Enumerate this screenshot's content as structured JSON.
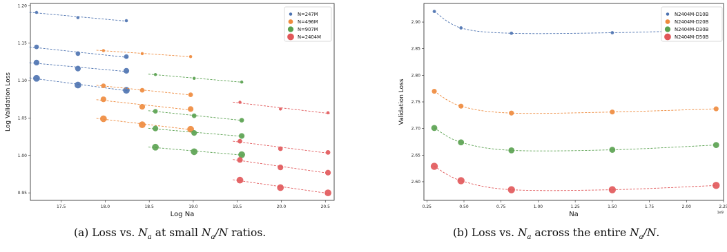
{
  "charts": [
    {
      "type": "scatter",
      "xlabel": "Log Na",
      "ylabel": "Log Validation Loss",
      "xlim": [
        17.15,
        20.6
      ],
      "ylim": [
        0.94,
        1.203
      ],
      "xticks": [
        17.5,
        18.0,
        18.5,
        19.0,
        19.5,
        20.0,
        20.5
      ],
      "xtick_labels": [
        "17.5",
        "18.0",
        "18.5",
        "19.0",
        "19.5",
        "20.0",
        "20.5"
      ],
      "yticks": [
        0.95,
        1.0,
        1.05,
        1.1,
        1.15,
        1.2
      ],
      "ytick_labels": [
        "0.95",
        "1.00",
        "1.05",
        "1.10",
        "1.15",
        "1.20"
      ],
      "legend_position": "top-right",
      "grid": false,
      "legend": [
        "N=247M",
        "N=496M",
        "N=907M",
        "N=2404M"
      ],
      "colors": [
        "#4c72b0",
        "#ee8a3c",
        "#59a14f",
        "#e15759"
      ],
      "point_sizes": [
        3,
        4.5,
        5.5,
        6.5
      ],
      "series": [
        {
          "color_index": 0,
          "sub": [
            {
              "x": [
                17.22,
                17.69,
                18.24
              ],
              "y": [
                1.191,
                1.184,
                1.18
              ]
            },
            {
              "x": [
                17.22,
                17.69,
                18.24
              ],
              "y": [
                1.145,
                1.136,
                1.132
              ]
            },
            {
              "x": [
                17.22,
                17.69,
                18.24
              ],
              "y": [
                1.124,
                1.116,
                1.113
              ]
            },
            {
              "x": [
                17.22,
                17.69,
                18.24
              ],
              "y": [
                1.103,
                1.094,
                1.087
              ]
            }
          ]
        },
        {
          "color_index": 1,
          "sub": [
            {
              "x": [
                17.98,
                18.42,
                18.97
              ],
              "y": [
                1.14,
                1.136,
                1.132
              ]
            },
            {
              "x": [
                17.98,
                18.42,
                18.97
              ],
              "y": [
                1.093,
                1.087,
                1.081
              ]
            },
            {
              "x": [
                17.98,
                18.42,
                18.97
              ],
              "y": [
                1.075,
                1.065,
                1.062
              ]
            },
            {
              "x": [
                17.98,
                18.42,
                18.97
              ],
              "y": [
                1.049,
                1.041,
                1.035
              ]
            }
          ]
        },
        {
          "color_index": 2,
          "sub": [
            {
              "x": [
                18.57,
                19.01,
                19.55
              ],
              "y": [
                1.108,
                1.103,
                1.098
              ]
            },
            {
              "x": [
                18.57,
                19.01,
                19.55
              ],
              "y": [
                1.059,
                1.053,
                1.047
              ]
            },
            {
              "x": [
                18.57,
                19.01,
                19.55
              ],
              "y": [
                1.036,
                1.03,
                1.026
              ]
            },
            {
              "x": [
                18.57,
                19.01,
                19.55
              ],
              "y": [
                1.011,
                1.005,
                1.001
              ]
            }
          ]
        },
        {
          "color_index": 3,
          "sub": [
            {
              "x": [
                19.53,
                19.99,
                20.53
              ],
              "y": [
                1.071,
                1.062,
                1.057
              ]
            },
            {
              "x": [
                19.53,
                19.99,
                20.53
              ],
              "y": [
                1.019,
                1.009,
                1.004
              ]
            },
            {
              "x": [
                19.53,
                19.99,
                20.53
              ],
              "y": [
                0.994,
                0.984,
                0.977
              ]
            },
            {
              "x": [
                19.53,
                19.99,
                20.53
              ],
              "y": [
                0.967,
                0.957,
                0.95
              ]
            }
          ]
        }
      ]
    },
    {
      "type": "scatter",
      "xlabel": "Na",
      "ylabel": "Validation Loss",
      "x_multiplier": "1e9",
      "xlim": [
        0.23,
        2.25
      ],
      "ylim": [
        2.565,
        2.935
      ],
      "xticks": [
        0.25,
        0.5,
        0.75,
        1.0,
        1.25,
        1.5,
        1.75,
        2.0,
        2.25
      ],
      "xtick_labels": [
        "0.25",
        "0.50",
        "0.75",
        "1.00",
        "1.25",
        "1.50",
        "1.75",
        "2.00",
        "2.25"
      ],
      "yticks": [
        2.6,
        2.65,
        2.7,
        2.75,
        2.8,
        2.85,
        2.9
      ],
      "ytick_labels": [
        "2.60",
        "2.65",
        "2.70",
        "2.75",
        "2.80",
        "2.85",
        "2.90"
      ],
      "legend_position": "top-right",
      "grid": false,
      "legend": [
        "N2404M-D10B",
        "N2404M-D20B",
        "N2404M-D30B",
        "N2404M-D50B"
      ],
      "colors": [
        "#4c72b0",
        "#ee8a3c",
        "#59a14f",
        "#e15759"
      ],
      "point_sizes": [
        3,
        4.5,
        5.5,
        6.5
      ],
      "series": [
        {
          "name": "N2404M-D10B",
          "x": [
            0.3,
            0.48,
            0.82,
            1.5,
            2.2
          ],
          "y": [
            2.92,
            2.889,
            2.879,
            2.88,
            2.885
          ]
        },
        {
          "name": "N2404M-D20B",
          "x": [
            0.3,
            0.48,
            0.82,
            1.5,
            2.2
          ],
          "y": [
            2.77,
            2.742,
            2.729,
            2.731,
            2.737
          ]
        },
        {
          "name": "N2404M-D30B",
          "x": [
            0.3,
            0.48,
            0.82,
            1.5,
            2.2
          ],
          "y": [
            2.701,
            2.674,
            2.659,
            2.66,
            2.669
          ]
        },
        {
          "name": "N2404M-D50B",
          "x": [
            0.3,
            0.48,
            0.82,
            1.5,
            2.2
          ],
          "y": [
            2.629,
            2.602,
            2.585,
            2.585,
            2.593
          ]
        }
      ]
    }
  ],
  "captions": {
    "a": {
      "prefix": "(a) Loss vs. ",
      "middle": " at small ",
      "suffix": " ratios."
    },
    "b": {
      "prefix": "(b) Loss vs. ",
      "middle": " across the entire ",
      "suffix": "."
    },
    "math": {
      "N": "N",
      "a": "a",
      "slash": "/"
    }
  }
}
